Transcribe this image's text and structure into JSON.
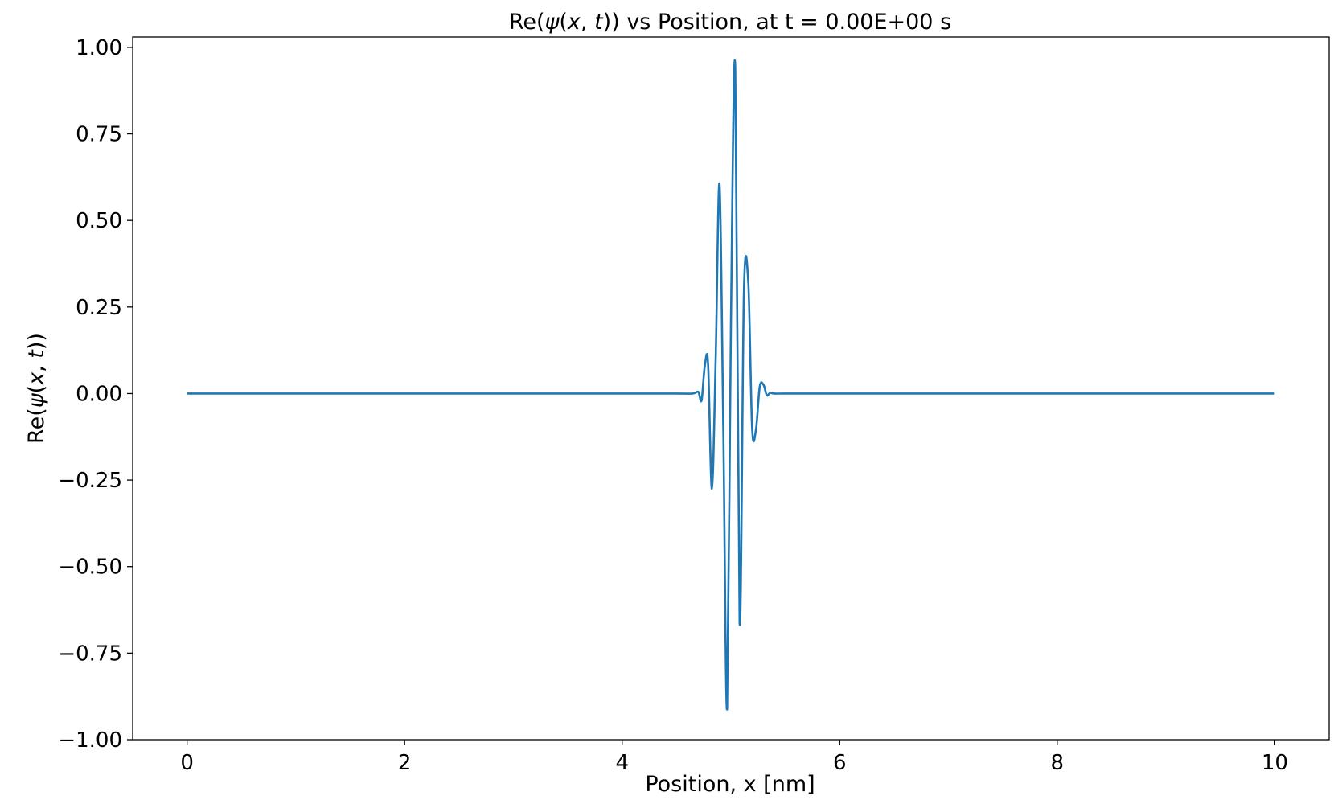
{
  "chart_data": {
    "type": "line",
    "title": {
      "prefix": "Re(",
      "psi": "ψ",
      "open": "(",
      "x": "x",
      "comma": ", ",
      "t": "t",
      "suffix": ")) vs Position, at t = 0.00E+00 s"
    },
    "xlabel": "Position, x [nm]",
    "ylabel": {
      "prefix": "Re(",
      "psi": "ψ",
      "open": "(",
      "x": "x",
      "comma": ", ",
      "t": "t",
      "suffix": "))"
    },
    "xlim": [
      -0.5,
      10.5
    ],
    "ylim": [
      -1.0,
      1.03
    ],
    "xticks": [
      0,
      2,
      4,
      6,
      8,
      10
    ],
    "xtick_labels": [
      "0",
      "2",
      "4",
      "6",
      "8",
      "10"
    ],
    "yticks": [
      1.0,
      0.75,
      0.5,
      0.25,
      0.0,
      -0.25,
      -0.5,
      -0.75,
      -1.0
    ],
    "ytick_labels": [
      "1.00",
      "0.75",
      "0.50",
      "0.25",
      "0.00",
      "−0.25",
      "−0.50",
      "−0.75",
      "−1.00"
    ],
    "grid": false,
    "series": [
      {
        "color": "#1f77b4",
        "x": [
          0.0,
          1.0,
          2.0,
          3.0,
          4.0,
          4.5,
          4.65,
          4.7,
          4.73,
          4.76,
          4.79,
          4.825,
          4.86,
          4.895,
          4.93,
          4.965,
          5.0,
          5.04,
          5.08,
          5.12,
          5.16,
          5.195,
          5.23,
          5.265,
          5.3,
          5.33,
          5.36,
          5.4,
          5.5,
          6.0,
          7.0,
          8.0,
          9.0,
          10.0
        ],
        "y": [
          0.0,
          0.0,
          0.0,
          0.0,
          0.0,
          0.0,
          0.0,
          0.005,
          -0.02,
          0.08,
          0.085,
          -0.275,
          0.1,
          0.605,
          -0.1,
          -0.91,
          0.2,
          0.94,
          -0.66,
          0.3,
          0.32,
          -0.1,
          -0.105,
          0.02,
          0.025,
          -0.005,
          0.002,
          0.0,
          0.0,
          0.0,
          0.0,
          0.0,
          0.0,
          0.0
        ]
      }
    ]
  }
}
